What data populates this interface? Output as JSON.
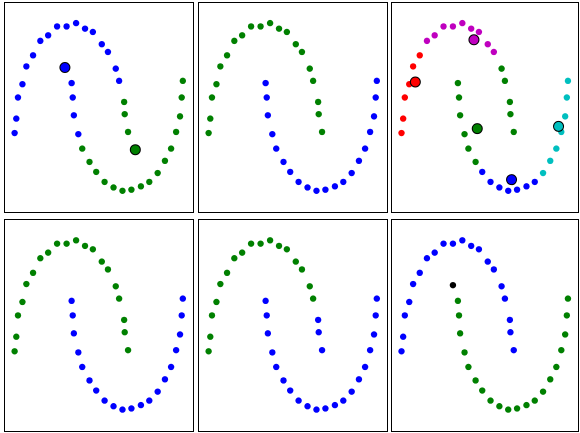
{
  "chart_data": [
    {
      "type": "scatter",
      "xlim": [
        -1.2,
        2.2
      ],
      "ylim": [
        -0.7,
        1.2
      ],
      "series": [
        {
          "color": "#0000ff",
          "x": [
            0.86,
            0.8,
            0.66,
            0.55,
            0.39,
            0.25,
            0.09,
            -0.08,
            -0.25,
            -0.41,
            -0.55,
            -0.68,
            -0.8,
            -0.87,
            -0.95,
            -0.98,
            -1.01,
            0.01,
            0.03,
            0.05,
            0.13
          ],
          "y": [
            0.49,
            0.6,
            0.75,
            0.82,
            0.93,
            0.96,
            1.01,
            0.98,
            0.98,
            0.9,
            0.85,
            0.72,
            0.62,
            0.46,
            0.34,
            0.15,
            0.02,
            0.47,
            0.34,
            0.18,
            0.01
          ]
        },
        {
          "color": "#008000",
          "x": [
            1.02,
            0.96,
            0.95,
            0.2,
            0.33,
            0.45,
            0.6,
            0.76,
            0.92,
            1.08,
            1.25,
            1.4,
            1.55,
            1.68,
            1.79,
            1.88,
            1.95,
            1.98,
            2.0
          ],
          "y": [
            0.03,
            0.19,
            0.3,
            -0.12,
            -0.24,
            -0.33,
            -0.42,
            -0.47,
            -0.5,
            -0.49,
            -0.46,
            -0.42,
            -0.34,
            -0.23,
            -0.12,
            0.03,
            0.17,
            0.34,
            0.49
          ]
        },
        {
          "color": "#0000ff",
          "edgecolor": "#000000",
          "size": 5,
          "x": [
            -0.11
          ],
          "y": [
            0.61
          ]
        },
        {
          "color": "#008000",
          "edgecolor": "#000000",
          "size": 5,
          "x": [
            1.15
          ],
          "y": [
            -0.13
          ]
        }
      ]
    },
    {
      "type": "scatter",
      "xlim": [
        -1.2,
        2.2
      ],
      "ylim": [
        -0.7,
        1.2
      ],
      "series": [
        {
          "color": "#008000",
          "x": [
            1.02,
            0.96,
            0.95,
            0.86,
            0.8,
            0.66,
            0.55,
            0.39,
            0.25,
            0.09,
            -0.08,
            -0.25,
            -0.41,
            -0.55,
            -0.68,
            -0.8,
            -0.87,
            -0.95,
            -0.98,
            -1.01
          ],
          "y": [
            0.03,
            0.19,
            0.3,
            0.49,
            0.6,
            0.75,
            0.82,
            0.93,
            0.96,
            1.01,
            0.98,
            0.98,
            0.9,
            0.85,
            0.72,
            0.62,
            0.46,
            0.34,
            0.15,
            0.02
          ]
        },
        {
          "color": "#0000ff",
          "x": [
            0.01,
            0.03,
            0.05,
            0.13,
            0.2,
            0.33,
            0.45,
            0.6,
            0.76,
            0.92,
            1.08,
            1.25,
            1.4,
            1.55,
            1.68,
            1.79,
            1.88,
            1.95,
            1.98,
            2.0
          ],
          "y": [
            0.47,
            0.34,
            0.18,
            0.01,
            -0.12,
            -0.24,
            -0.33,
            -0.42,
            -0.47,
            -0.5,
            -0.49,
            -0.46,
            -0.42,
            -0.34,
            -0.23,
            -0.12,
            0.03,
            0.17,
            0.34,
            0.49
          ]
        }
      ]
    },
    {
      "type": "scatter",
      "xlim": [
        -1.2,
        2.2
      ],
      "ylim": [
        -0.7,
        1.2
      ],
      "series": [
        {
          "color": "#ff0000",
          "x": [
            -0.68,
            -0.8,
            -0.87,
            -0.95,
            -0.98,
            -1.01
          ],
          "y": [
            0.72,
            0.62,
            0.46,
            0.34,
            0.15,
            0.02
          ]
        },
        {
          "color": "#bf00bf",
          "x": [
            0.66,
            0.55,
            0.39,
            0.25,
            0.09,
            -0.08,
            -0.25,
            -0.41,
            -0.55
          ],
          "y": [
            0.75,
            0.82,
            0.93,
            0.96,
            1.01,
            0.98,
            0.98,
            0.9,
            0.85
          ]
        },
        {
          "color": "#008000",
          "x": [
            1.02,
            0.96,
            0.95,
            0.86,
            0.8,
            0.01,
            0.03,
            0.05,
            0.13,
            0.2,
            0.33
          ],
          "y": [
            0.03,
            0.19,
            0.3,
            0.49,
            0.6,
            0.47,
            0.34,
            0.18,
            0.01,
            -0.12,
            -0.24
          ]
        },
        {
          "color": "#0000ff",
          "x": [
            0.45,
            0.6,
            0.76,
            0.92,
            1.08,
            1.25,
            1.4
          ],
          "y": [
            -0.33,
            -0.42,
            -0.47,
            -0.5,
            -0.49,
            -0.46,
            -0.42
          ]
        },
        {
          "color": "#00bfbf",
          "x": [
            1.55,
            1.68,
            1.79,
            1.88,
            1.95,
            1.98,
            2.0
          ],
          "y": [
            -0.34,
            -0.23,
            -0.12,
            0.03,
            0.17,
            0.34,
            0.49
          ]
        },
        {
          "color": "#bf00bf",
          "edgecolor": "#000000",
          "size": 5,
          "x": [
            0.3
          ],
          "y": [
            0.86
          ]
        },
        {
          "color": "#ff0000",
          "edgecolor": "#000000",
          "size": 5,
          "x": [
            -0.76
          ],
          "y": [
            0.48
          ]
        },
        {
          "color": "#008000",
          "edgecolor": "#000000",
          "size": 5,
          "x": [
            0.36
          ],
          "y": [
            0.06
          ]
        },
        {
          "color": "#0000ff",
          "edgecolor": "#000000",
          "size": 5,
          "x": [
            0.98
          ],
          "y": [
            -0.4
          ]
        },
        {
          "color": "#00bfbf",
          "edgecolor": "#000000",
          "size": 5,
          "x": [
            1.83
          ],
          "y": [
            0.08
          ]
        }
      ]
    },
    {
      "type": "scatter",
      "xlim": [
        -1.2,
        2.2
      ],
      "ylim": [
        -0.7,
        1.2
      ],
      "series": [
        {
          "color": "#008000",
          "x": [
            1.02,
            0.96,
            0.95,
            0.86,
            0.8,
            0.66,
            0.55,
            0.39,
            0.25,
            0.09,
            -0.08,
            -0.25,
            -0.41,
            -0.55,
            -0.68,
            -0.8,
            -0.87,
            -0.95,
            -0.98,
            -1.01
          ],
          "y": [
            0.03,
            0.19,
            0.3,
            0.49,
            0.6,
            0.75,
            0.82,
            0.93,
            0.96,
            1.01,
            0.98,
            0.98,
            0.9,
            0.85,
            0.72,
            0.62,
            0.46,
            0.34,
            0.15,
            0.02
          ]
        },
        {
          "color": "#0000ff",
          "x": [
            0.01,
            0.03,
            0.05,
            0.13,
            0.2,
            0.33,
            0.45,
            0.6,
            0.76,
            0.92,
            1.08,
            1.25,
            1.4,
            1.55,
            1.68,
            1.79,
            1.88,
            1.95,
            1.98,
            2.0
          ],
          "y": [
            0.47,
            0.34,
            0.18,
            0.01,
            -0.12,
            -0.24,
            -0.33,
            -0.42,
            -0.47,
            -0.5,
            -0.49,
            -0.46,
            -0.42,
            -0.34,
            -0.23,
            -0.12,
            0.03,
            0.17,
            0.34,
            0.49
          ]
        }
      ]
    },
    {
      "type": "scatter",
      "xlim": [
        -1.2,
        2.2
      ],
      "ylim": [
        -0.7,
        1.2
      ],
      "series": [
        {
          "color": "#008000",
          "x": [
            0.86,
            0.8,
            0.66,
            0.55,
            0.39,
            0.25,
            0.09,
            -0.08,
            -0.25,
            -0.41,
            -0.55,
            -0.68,
            -0.8,
            -0.87,
            -0.95,
            -0.98,
            -1.01
          ],
          "y": [
            0.49,
            0.6,
            0.75,
            0.82,
            0.93,
            0.96,
            1.01,
            0.98,
            0.98,
            0.9,
            0.85,
            0.72,
            0.62,
            0.46,
            0.34,
            0.15,
            0.02
          ]
        },
        {
          "color": "#0000ff",
          "x": [
            1.02,
            0.96,
            0.95,
            0.01,
            0.03,
            0.05,
            0.13,
            0.2,
            0.33,
            0.45,
            0.6,
            0.76,
            0.92,
            1.08,
            1.25,
            1.4,
            1.55,
            1.68,
            1.79,
            1.88,
            1.95,
            1.98,
            2.0
          ],
          "y": [
            0.03,
            0.19,
            0.3,
            0.47,
            0.34,
            0.18,
            0.01,
            -0.12,
            -0.24,
            -0.33,
            -0.42,
            -0.47,
            -0.5,
            -0.49,
            -0.46,
            -0.42,
            -0.34,
            -0.23,
            -0.12,
            0.03,
            0.17,
            0.34,
            0.49
          ]
        }
      ]
    },
    {
      "type": "scatter",
      "xlim": [
        -1.2,
        2.2
      ],
      "ylim": [
        -0.7,
        1.2
      ],
      "series": [
        {
          "color": "#0000ff",
          "x": [
            1.02,
            0.96,
            0.95,
            0.86,
            0.8,
            0.66,
            0.55,
            0.39,
            0.25,
            0.09,
            -0.08,
            -0.25,
            -0.41,
            -0.55,
            -0.68,
            -0.8,
            -0.87,
            -0.95,
            -0.98,
            -1.01
          ],
          "y": [
            0.03,
            0.19,
            0.3,
            0.49,
            0.6,
            0.75,
            0.82,
            0.93,
            0.96,
            1.01,
            0.98,
            0.98,
            0.9,
            0.85,
            0.72,
            0.62,
            0.46,
            0.34,
            0.15,
            0.02
          ]
        },
        {
          "color": "#008000",
          "x": [
            0.01,
            0.03,
            0.05,
            0.13,
            0.2,
            0.33,
            0.45,
            0.6,
            0.76,
            0.92,
            1.08,
            1.25,
            1.4,
            1.55,
            1.68,
            1.79,
            1.88,
            1.95,
            1.98,
            2.0
          ],
          "y": [
            0.47,
            0.34,
            0.18,
            0.01,
            -0.12,
            -0.24,
            -0.33,
            -0.42,
            -0.47,
            -0.5,
            -0.49,
            -0.46,
            -0.42,
            -0.34,
            -0.23,
            -0.12,
            0.03,
            0.17,
            0.34,
            0.49
          ]
        },
        {
          "color": "#000000",
          "x": [
            -0.08
          ],
          "y": [
            0.61
          ]
        }
      ]
    }
  ]
}
